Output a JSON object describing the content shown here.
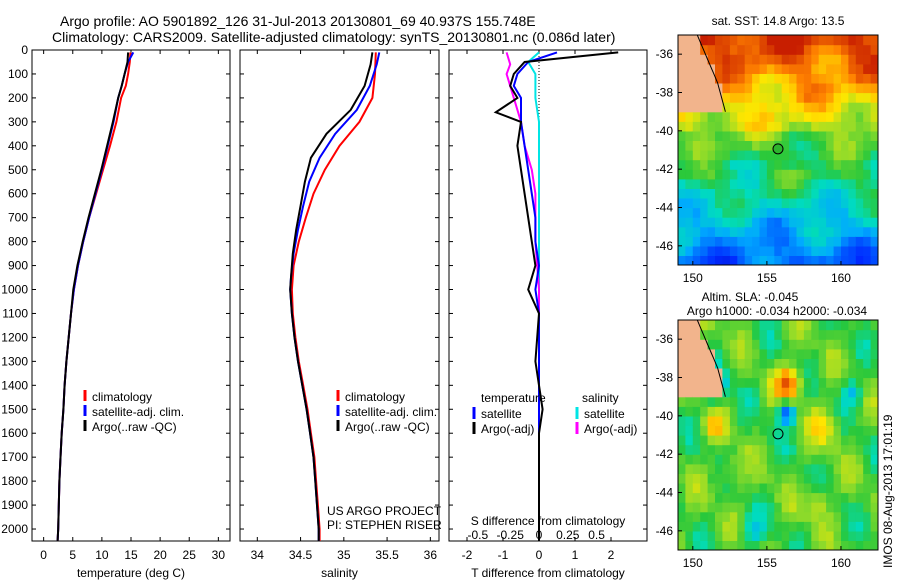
{
  "header": {
    "line1": "Argo profile: AO 5901892_126 31-Jul-2013 20130801_69 40.937S 155.748E",
    "line2": "Climatology: CARS2009. Satellite-adjusted climatology: synTS_20130801.nc (0.086d later)"
  },
  "credits": {
    "project": "US ARGO PROJECT",
    "pi": "PI: STEPHEN RISER",
    "stamp": "IMOS 08-Aug-2013 17:01:19"
  },
  "colors": {
    "climatology": "#ff0000",
    "satellite": "#0000ff",
    "argo": "#000000",
    "sal_satellite": "#00e5e5",
    "sal_argo": "#ff00ff",
    "land": "#f2b48c"
  },
  "chart_data": [
    {
      "type": "line",
      "xlabel": "temperature (deg C)",
      "xlim": [
        -2,
        32
      ],
      "ylim": [
        2050,
        0
      ],
      "xticks": [
        0,
        5,
        10,
        15,
        20,
        25,
        30
      ],
      "yticks": [
        0,
        100,
        200,
        300,
        400,
        500,
        600,
        700,
        800,
        900,
        1000,
        1100,
        1200,
        1300,
        1400,
        1500,
        1600,
        1700,
        1800,
        1900,
        2000
      ],
      "legend": [
        "climatology",
        "satellite-adj. clim.",
        "Argo(..raw -QC)"
      ],
      "series": [
        {
          "name": "climatology",
          "color": "#ff0000",
          "points": [
            [
              14.9,
              10
            ],
            [
              14.8,
              50
            ],
            [
              14.5,
              100
            ],
            [
              14.1,
              150
            ],
            [
              13.3,
              200
            ],
            [
              12.5,
              300
            ],
            [
              11.4,
              400
            ],
            [
              10.2,
              500
            ],
            [
              9.0,
              600
            ],
            [
              7.8,
              700
            ],
            [
              6.8,
              800
            ],
            [
              5.9,
              900
            ],
            [
              5.2,
              1000
            ],
            [
              4.7,
              1100
            ],
            [
              4.3,
              1200
            ],
            [
              3.9,
              1300
            ],
            [
              3.6,
              1400
            ],
            [
              3.4,
              1500
            ],
            [
              3.1,
              1600
            ],
            [
              2.9,
              1700
            ],
            [
              2.7,
              1800
            ],
            [
              2.6,
              1900
            ],
            [
              2.5,
              2000
            ],
            [
              2.4,
              2050
            ]
          ]
        },
        {
          "name": "satellite-adj. clim.",
          "color": "#0000ff",
          "points": [
            [
              15.4,
              10
            ],
            [
              14.5,
              50
            ],
            [
              13.9,
              100
            ],
            [
              13.4,
              150
            ],
            [
              12.8,
              200
            ],
            [
              12.0,
              300
            ],
            [
              11.0,
              400
            ],
            [
              10.0,
              500
            ],
            [
              8.9,
              600
            ],
            [
              7.8,
              700
            ],
            [
              6.8,
              800
            ],
            [
              5.9,
              900
            ],
            [
              5.2,
              1000
            ],
            [
              4.7,
              1100
            ],
            [
              4.3,
              1200
            ],
            [
              3.9,
              1300
            ],
            [
              3.6,
              1400
            ],
            [
              3.4,
              1500
            ],
            [
              3.1,
              1600
            ],
            [
              2.9,
              1700
            ],
            [
              2.7,
              1800
            ],
            [
              2.6,
              1900
            ],
            [
              2.5,
              2000
            ],
            [
              2.4,
              2050
            ]
          ]
        },
        {
          "name": "Argo(..raw -QC)",
          "color": "#000000",
          "points": [
            [
              14.5,
              10
            ],
            [
              14.4,
              50
            ],
            [
              13.9,
              100
            ],
            [
              13.4,
              150
            ],
            [
              12.8,
              200
            ],
            [
              11.9,
              300
            ],
            [
              10.9,
              400
            ],
            [
              9.9,
              500
            ],
            [
              8.8,
              600
            ],
            [
              7.7,
              700
            ],
            [
              6.7,
              800
            ],
            [
              5.8,
              900
            ],
            [
              5.1,
              1000
            ],
            [
              4.7,
              1100
            ],
            [
              4.3,
              1200
            ],
            [
              3.9,
              1300
            ],
            [
              3.6,
              1400
            ],
            [
              3.4,
              1500
            ],
            [
              3.1,
              1600
            ],
            [
              2.9,
              1700
            ],
            [
              2.7,
              1800
            ],
            [
              2.6,
              1900
            ],
            [
              2.5,
              2000
            ],
            [
              2.4,
              2050
            ]
          ]
        }
      ]
    },
    {
      "type": "line",
      "xlabel": "salinity",
      "xlim": [
        33.8,
        36.1
      ],
      "ylim": [
        2050,
        0
      ],
      "xticks": [
        34,
        34.5,
        35,
        35.5,
        36
      ],
      "legend": [
        "climatology",
        "satellite-adj. clim.",
        "Argo(..raw -QC)"
      ],
      "series": [
        {
          "name": "climatology",
          "color": "#ff0000",
          "points": [
            [
              35.37,
              10
            ],
            [
              35.36,
              100
            ],
            [
              35.33,
              200
            ],
            [
              35.18,
              300
            ],
            [
              34.95,
              400
            ],
            [
              34.78,
              500
            ],
            [
              34.65,
              600
            ],
            [
              34.56,
              700
            ],
            [
              34.48,
              800
            ],
            [
              34.42,
              900
            ],
            [
              34.4,
              1000
            ],
            [
              34.41,
              1100
            ],
            [
              34.44,
              1200
            ],
            [
              34.48,
              1300
            ],
            [
              34.53,
              1400
            ],
            [
              34.58,
              1500
            ],
            [
              34.62,
              1600
            ],
            [
              34.66,
              1700
            ],
            [
              34.68,
              1800
            ],
            [
              34.7,
              1900
            ],
            [
              34.72,
              2000
            ],
            [
              34.72,
              2050
            ]
          ]
        },
        {
          "name": "satellite-adj. clim.",
          "color": "#0000ff",
          "points": [
            [
              35.41,
              10
            ],
            [
              35.38,
              60
            ],
            [
              35.3,
              150
            ],
            [
              35.15,
              250
            ],
            [
              34.9,
              350
            ],
            [
              34.72,
              450
            ],
            [
              34.6,
              550
            ],
            [
              34.53,
              650
            ],
            [
              34.47,
              750
            ],
            [
              34.42,
              850
            ],
            [
              34.39,
              950
            ],
            [
              34.38,
              1000
            ],
            [
              34.4,
              1100
            ],
            [
              34.43,
              1200
            ],
            [
              34.47,
              1300
            ],
            [
              34.52,
              1400
            ],
            [
              34.57,
              1500
            ],
            [
              34.61,
              1600
            ],
            [
              34.65,
              1700
            ],
            [
              34.67,
              1800
            ],
            [
              34.69,
              1900
            ],
            [
              34.71,
              2000
            ],
            [
              34.71,
              2050
            ]
          ]
        },
        {
          "name": "Argo(..raw -QC)",
          "color": "#000000",
          "points": [
            [
              35.33,
              10
            ],
            [
              35.31,
              60
            ],
            [
              35.24,
              150
            ],
            [
              35.08,
              250
            ],
            [
              34.8,
              350
            ],
            [
              34.62,
              450
            ],
            [
              34.55,
              550
            ],
            [
              34.5,
              650
            ],
            [
              34.45,
              750
            ],
            [
              34.41,
              850
            ],
            [
              34.39,
              950
            ],
            [
              34.38,
              1000
            ],
            [
              34.4,
              1100
            ],
            [
              34.43,
              1200
            ],
            [
              34.47,
              1300
            ],
            [
              34.52,
              1400
            ],
            [
              34.57,
              1500
            ],
            [
              34.61,
              1600
            ],
            [
              34.65,
              1700
            ],
            [
              34.67,
              1800
            ],
            [
              34.69,
              1900
            ],
            [
              34.71,
              2000
            ],
            [
              34.71,
              2050
            ]
          ]
        }
      ]
    },
    {
      "type": "line",
      "xlabel": "T difference from climatology",
      "xlabel_top": "S difference from climatology",
      "xlim": [
        -2.5,
        3
      ],
      "ylim": [
        2050,
        0
      ],
      "xticks": [
        -2,
        -1,
        0,
        1,
        2
      ],
      "top_ticks": [
        [
          "-0.5",
          -1.7
        ],
        [
          "-0.25",
          -0.8
        ],
        [
          "0",
          0
        ],
        [
          "0.25",
          0.8
        ],
        [
          "0.5",
          1.6
        ]
      ],
      "legend_headers": [
        "temperature",
        "salinity"
      ],
      "legend": [
        "satellite",
        "Argo(-adj)",
        "satellite",
        "Argo(-adj)"
      ],
      "series": [
        {
          "name": "temperature satellite",
          "color": "#0000ff",
          "points": [
            [
              0.5,
              10
            ],
            [
              -0.3,
              50
            ],
            [
              -0.6,
              100
            ],
            [
              -0.7,
              150
            ],
            [
              -0.5,
              200
            ],
            [
              -0.5,
              300
            ],
            [
              -0.4,
              400
            ],
            [
              -0.3,
              500
            ],
            [
              -0.2,
              600
            ],
            [
              -0.1,
              700
            ],
            [
              -0.1,
              800
            ],
            [
              0,
              900
            ],
            [
              -0.1,
              1000
            ],
            [
              0,
              1100
            ],
            [
              0,
              1300
            ],
            [
              0,
              1500
            ],
            [
              0,
              2050
            ]
          ]
        },
        {
          "name": "temperature Argo(-adj)",
          "color": "#000000",
          "points": [
            [
              2.2,
              10
            ],
            [
              -0.4,
              50
            ],
            [
              -0.7,
              100
            ],
            [
              -0.8,
              150
            ],
            [
              -0.6,
              200
            ],
            [
              -1.2,
              260
            ],
            [
              -0.5,
              300
            ],
            [
              -0.6,
              400
            ],
            [
              -0.5,
              500
            ],
            [
              -0.4,
              600
            ],
            [
              -0.3,
              700
            ],
            [
              -0.2,
              800
            ],
            [
              -0.1,
              900
            ],
            [
              -0.3,
              1000
            ],
            [
              0,
              1100
            ],
            [
              -0.1,
              1300
            ],
            [
              0,
              1400
            ],
            [
              0.1,
              1500
            ],
            [
              0,
              1600
            ],
            [
              0,
              2050
            ]
          ]
        },
        {
          "name": "salinity satellite",
          "color": "#00e5e5",
          "points": [
            [
              0,
              10
            ],
            [
              -0.3,
              50
            ],
            [
              -0.1,
              100
            ],
            [
              -0.1,
              200
            ],
            [
              0,
              300
            ],
            [
              0,
              500
            ],
            [
              0,
              700
            ],
            [
              0,
              1000
            ],
            [
              0,
              1500
            ],
            [
              0,
              2050
            ]
          ]
        },
        {
          "name": "salinity Argo(-adj)",
          "color": "#ff00ff",
          "points": [
            [
              -0.9,
              10
            ],
            [
              -0.8,
              60
            ],
            [
              -0.9,
              100
            ],
            [
              -0.7,
              200
            ],
            [
              -0.5,
              300
            ],
            [
              -0.4,
              400
            ],
            [
              -0.2,
              500
            ],
            [
              -0.1,
              600
            ],
            [
              -0.1,
              800
            ],
            [
              0,
              1000
            ],
            [
              0,
              1500
            ],
            [
              0,
              2050
            ]
          ]
        }
      ]
    },
    {
      "type": "heatmap",
      "title": "sat. SST: 14.8 Argo: 13.5",
      "xlim": [
        149,
        162.5
      ],
      "ylim": [
        -47,
        -35
      ],
      "xticks": [
        150,
        155,
        160
      ],
      "yticks": [
        -36,
        -38,
        -40,
        -42,
        -44,
        -46
      ],
      "marker": [
        155.75,
        -40.94
      ]
    },
    {
      "type": "heatmap",
      "title": "Altim. SLA: -0.045",
      "subtitle": "Argo h1000: -0.034 h2000: -0.034",
      "xlim": [
        149,
        162.5
      ],
      "ylim": [
        -47,
        -35
      ],
      "xticks": [
        150,
        155,
        160
      ],
      "yticks": [
        -36,
        -38,
        -40,
        -42,
        -44,
        -46
      ],
      "marker": [
        155.75,
        -40.94
      ]
    }
  ]
}
